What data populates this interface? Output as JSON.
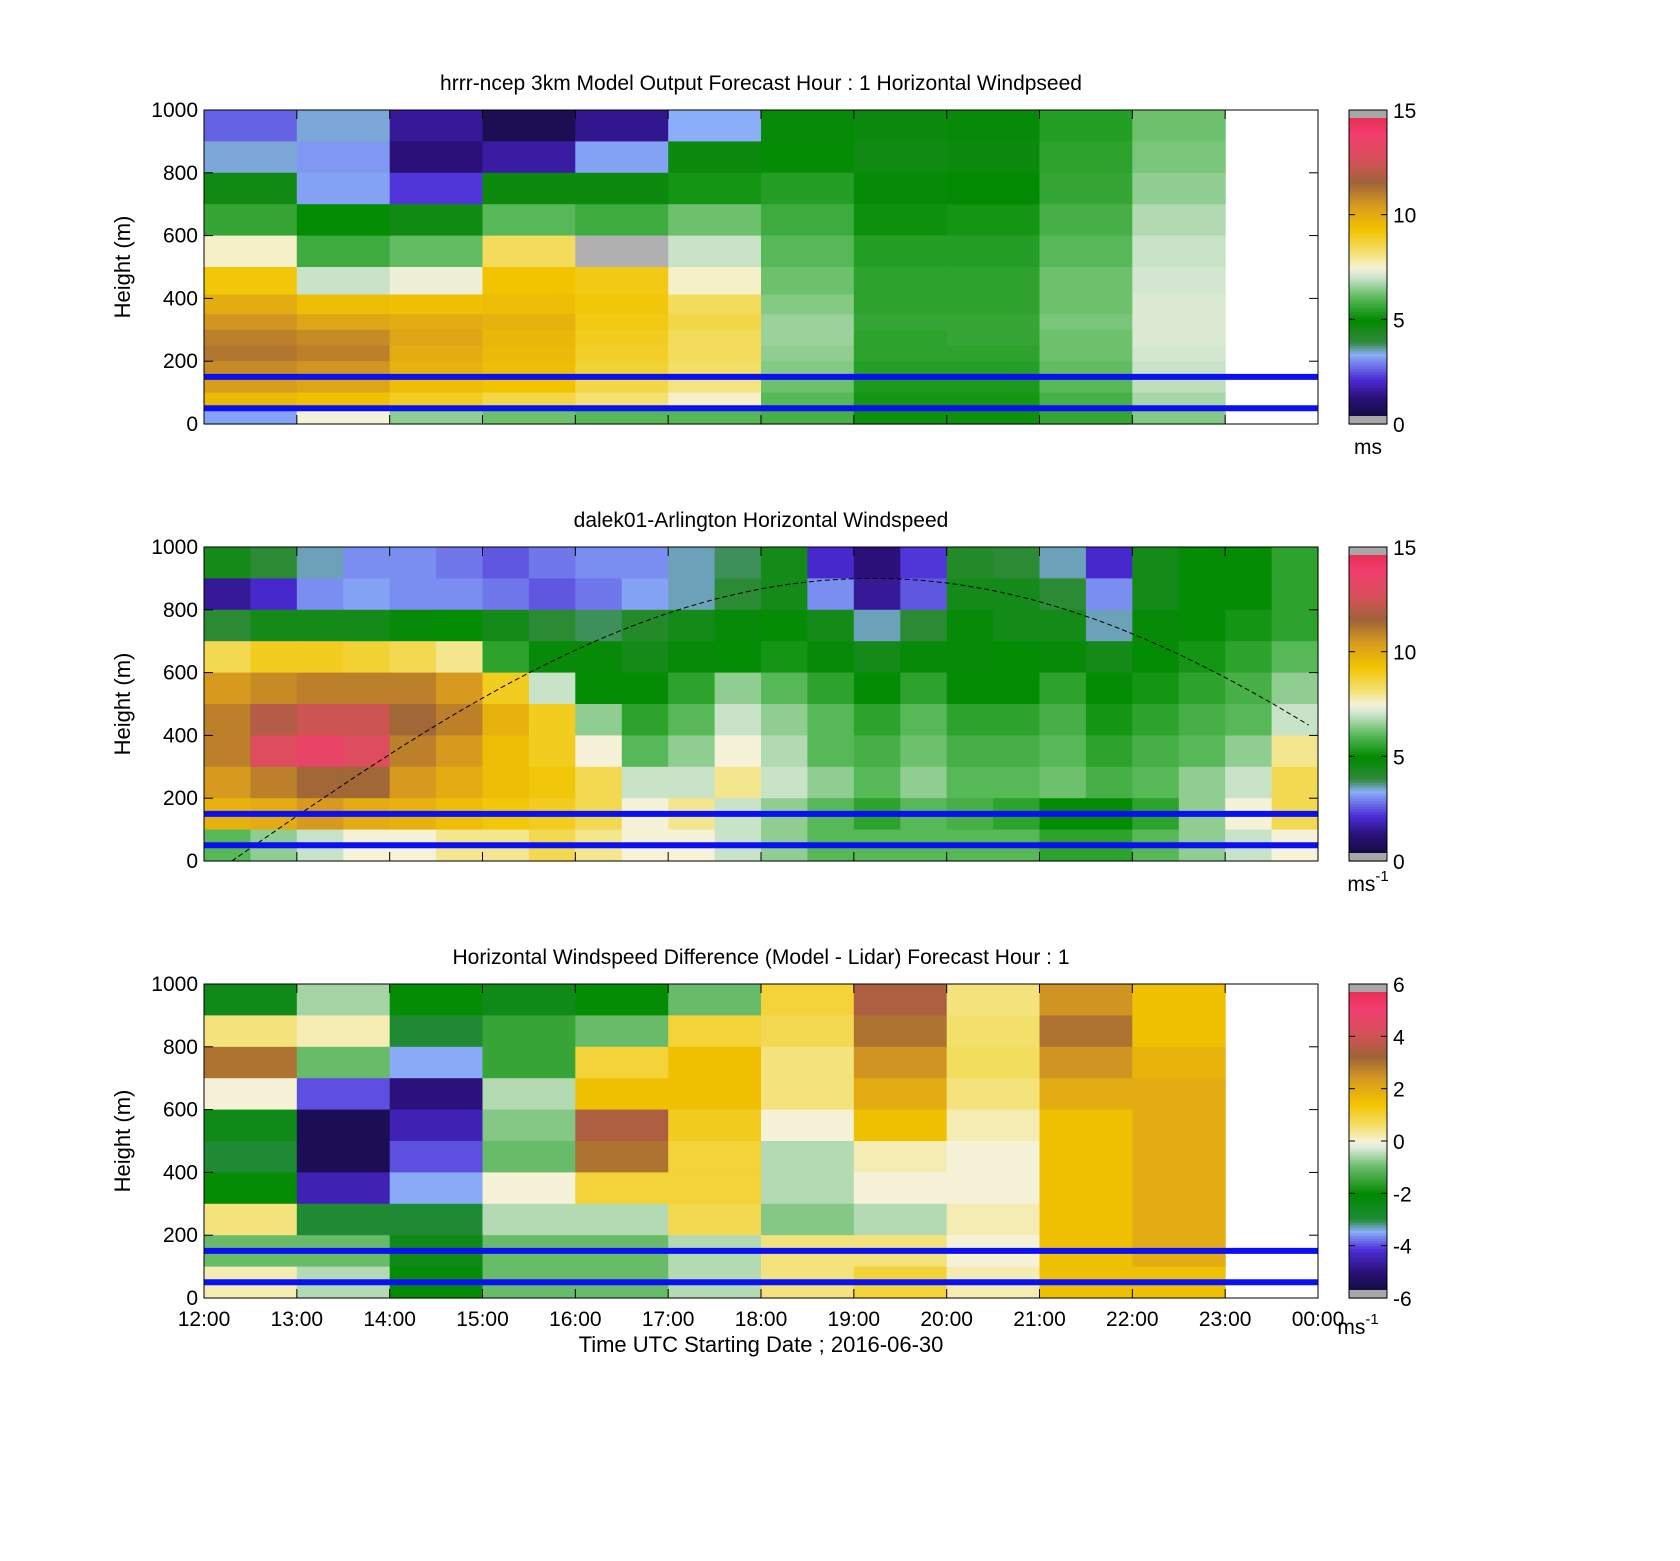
{
  "figure": {
    "xlabel": "Time UTC  Starting Date ; 2016-06-30",
    "x_ticks": [
      "12:00",
      "13:00",
      "14:00",
      "15:00",
      "16:00",
      "17:00",
      "18:00",
      "19:00",
      "20:00",
      "21:00",
      "22:00",
      "23:00",
      "00:00"
    ]
  },
  "chart_data": [
    {
      "type": "heatmap",
      "title": "hrrr-ncep 3km Model Output   Forecast Hour : 1 Horizontal Windpseed",
      "ylabel": "Height (m)",
      "xlabel": "",
      "ylim": [
        0,
        1000
      ],
      "y_ticks": [
        "0",
        "200",
        "400",
        "600",
        "800",
        "1000"
      ],
      "colorbar": {
        "range": [
          0,
          15
        ],
        "ticks": [
          "0",
          "5",
          "10",
          "15"
        ],
        "units": "ms",
        "units_sup": "",
        "palette": "speed"
      },
      "reference_lines_m": [
        50,
        150
      ],
      "x_hours": [
        12,
        13,
        14,
        15,
        16,
        17,
        18,
        19,
        20,
        21,
        22
      ],
      "y_levels_m": [
        950,
        850,
        750,
        650,
        550,
        450,
        375,
        325,
        275,
        225,
        175,
        125,
        75,
        25
      ],
      "values": [
        [
          2.6,
          3.4,
          1.5,
          0.6,
          1.4,
          3.3,
          4.8,
          4.7,
          4.8,
          5.4,
          6.2
        ],
        [
          3.4,
          3.1,
          1.2,
          1.6,
          3.2,
          4.7,
          5.0,
          4.6,
          4.7,
          5.5,
          6.3
        ],
        [
          4.6,
          3.2,
          2.2,
          4.7,
          4.7,
          5.2,
          5.4,
          4.8,
          4.9,
          5.6,
          6.5
        ],
        [
          5.6,
          5.0,
          4.6,
          6.0,
          5.7,
          6.2,
          5.7,
          5.1,
          5.2,
          5.8,
          6.8
        ],
        [
          7.6,
          5.7,
          6.1,
          8.4,
          0.0,
          7.0,
          6.0,
          5.4,
          5.4,
          6.0,
          7.0
        ],
        [
          9.2,
          7.0,
          7.4,
          9.3,
          9.1,
          7.6,
          6.2,
          5.5,
          5.5,
          6.2,
          7.1
        ],
        [
          10.0,
          9.5,
          9.4,
          9.5,
          9.2,
          8.4,
          6.4,
          5.5,
          5.5,
          6.2,
          7.2
        ],
        [
          10.6,
          10.2,
          10.0,
          9.8,
          9.1,
          8.6,
          6.6,
          5.6,
          5.6,
          6.3,
          7.2
        ],
        [
          11.0,
          10.8,
          10.2,
          9.7,
          9.0,
          8.4,
          6.6,
          5.5,
          5.6,
          6.2,
          7.2
        ],
        [
          11.2,
          11.0,
          10.0,
          9.6,
          8.9,
          8.4,
          6.5,
          5.5,
          5.5,
          6.2,
          7.1
        ],
        [
          10.8,
          10.6,
          9.8,
          9.5,
          8.8,
          8.3,
          6.4,
          5.4,
          5.4,
          6.1,
          7.0
        ],
        [
          10.4,
          10.2,
          9.5,
          9.3,
          8.6,
          8.1,
          6.2,
          5.3,
          5.3,
          6.0,
          6.9
        ],
        [
          9.6,
          9.4,
          9.0,
          8.6,
          8.2,
          7.6,
          6.0,
          5.2,
          5.2,
          5.8,
          6.7
        ],
        [
          3.2,
          7.5,
          6.5,
          6.2,
          6.0,
          6.0,
          5.8,
          5.1,
          5.1,
          5.6,
          6.4
        ]
      ]
    },
    {
      "type": "heatmap",
      "title": "dalek01-Arlington  Horizontal Windspeed",
      "ylabel": "Height (m)",
      "xlabel": "",
      "ylim": [
        0,
        1000
      ],
      "y_ticks": [
        "0",
        "200",
        "400",
        "600",
        "800",
        "1000"
      ],
      "colorbar": {
        "range": [
          0,
          15
        ],
        "ticks": [
          "0",
          "5",
          "10",
          "15"
        ],
        "units": "ms",
        "units_sup": "-1",
        "palette": "speed"
      },
      "reference_lines_m": [
        50,
        150
      ],
      "x_hours": [
        12.0,
        12.5,
        13.0,
        13.5,
        14.0,
        14.5,
        15.0,
        15.5,
        16.0,
        16.5,
        17.0,
        17.5,
        18.0,
        18.5,
        19.0,
        19.5,
        20.0,
        20.5,
        21.0,
        21.5,
        22.0,
        22.5,
        23.0,
        23.5
      ],
      "y_levels_m": [
        950,
        850,
        750,
        650,
        550,
        450,
        350,
        250,
        150,
        50
      ],
      "values": [
        [
          4.5,
          4.0,
          3.5,
          3.0,
          3.0,
          2.8,
          2.5,
          2.8,
          3.0,
          3.0,
          3.5,
          3.8,
          4.5,
          2.0,
          1.2,
          2.2,
          4.2,
          4.0,
          3.5,
          2.0,
          4.5,
          5.0,
          5.0,
          5.5
        ],
        [
          1.5,
          2.0,
          3.0,
          3.2,
          3.0,
          3.0,
          2.8,
          2.5,
          2.8,
          3.2,
          3.5,
          4.0,
          4.5,
          3.0,
          1.5,
          2.5,
          4.5,
          4.5,
          4.0,
          3.0,
          4.5,
          5.0,
          5.0,
          5.5
        ],
        [
          4.0,
          4.5,
          4.5,
          4.5,
          4.8,
          5.0,
          4.5,
          4.0,
          3.8,
          4.2,
          4.5,
          4.8,
          5.0,
          4.5,
          3.5,
          4.0,
          4.8,
          4.5,
          4.5,
          3.5,
          4.8,
          5.0,
          5.2,
          5.5
        ],
        [
          8.5,
          9.0,
          9.0,
          8.8,
          8.5,
          8.0,
          5.5,
          4.8,
          4.8,
          4.5,
          4.8,
          5.0,
          5.2,
          4.8,
          4.5,
          4.8,
          4.8,
          5.0,
          4.8,
          4.5,
          5.0,
          5.2,
          5.5,
          6.0
        ],
        [
          10.5,
          10.8,
          11.0,
          11.0,
          11.0,
          10.5,
          9.0,
          7.0,
          5.0,
          5.0,
          5.5,
          6.5,
          6.0,
          5.5,
          5.0,
          5.5,
          5.0,
          5.0,
          5.5,
          5.0,
          5.2,
          5.5,
          5.8,
          6.5
        ],
        [
          11.0,
          12.0,
          12.5,
          12.5,
          11.5,
          11.0,
          9.8,
          9.0,
          6.5,
          5.5,
          6.0,
          7.0,
          6.5,
          6.0,
          5.5,
          6.0,
          5.5,
          5.5,
          5.8,
          5.2,
          5.5,
          5.8,
          6.0,
          7.0
        ],
        [
          11.0,
          13.0,
          13.5,
          13.0,
          11.0,
          10.5,
          9.5,
          9.0,
          7.5,
          6.0,
          6.5,
          7.5,
          6.8,
          6.0,
          5.8,
          6.2,
          5.8,
          5.8,
          6.0,
          5.5,
          5.8,
          6.0,
          6.5,
          8.0
        ],
        [
          10.5,
          11.0,
          11.5,
          11.5,
          10.5,
          10.0,
          9.5,
          9.2,
          8.5,
          7.0,
          7.0,
          8.0,
          7.0,
          6.5,
          6.0,
          6.5,
          6.0,
          6.0,
          6.2,
          5.8,
          6.0,
          6.5,
          7.0,
          8.5
        ],
        [
          9.8,
          10.0,
          10.5,
          10.0,
          9.8,
          9.5,
          9.2,
          9.0,
          8.5,
          7.5,
          8.0,
          7.0,
          6.5,
          6.0,
          5.5,
          6.0,
          5.8,
          5.5,
          5.0,
          5.0,
          5.5,
          6.5,
          7.5,
          8.5
        ],
        [
          6.0,
          6.5,
          7.0,
          7.5,
          7.5,
          8.0,
          8.0,
          8.5,
          8.0,
          7.5,
          7.5,
          7.0,
          6.5,
          6.0,
          6.0,
          6.0,
          6.0,
          6.0,
          5.5,
          5.5,
          6.0,
          6.5,
          7.0,
          7.5
        ]
      ]
    },
    {
      "type": "heatmap",
      "title": "Horizontal Windspeed Difference (Model - Lidar) Forecast Hour : 1",
      "ylabel": "Height (m)",
      "xlabel": "Time UTC  Starting Date ; 2016-06-30",
      "ylim": [
        0,
        1000
      ],
      "y_ticks": [
        "0",
        "200",
        "400",
        "600",
        "800",
        "1000"
      ],
      "colorbar": {
        "range": [
          -6,
          6
        ],
        "ticks": [
          "-6",
          "-4",
          "-2",
          "0",
          "2",
          "4",
          "6"
        ],
        "units": "ms",
        "units_sup": "-1",
        "palette": "diff"
      },
      "reference_lines_m": [
        50,
        150
      ],
      "x_hours": [
        12,
        13,
        14,
        15,
        16,
        17,
        18,
        19,
        20,
        21,
        22
      ],
      "y_levels_m": [
        950,
        850,
        750,
        650,
        550,
        450,
        350,
        250,
        150,
        50
      ],
      "values": [
        [
          -2.5,
          -0.6,
          -2.0,
          -2.5,
          -2.0,
          -1.0,
          1.0,
          3.5,
          0.5,
          2.5,
          1.5
        ],
        [
          0.5,
          0.2,
          -3.0,
          -1.5,
          -1.0,
          1.0,
          0.8,
          3.0,
          0.6,
          3.0,
          1.5
        ],
        [
          3.0,
          -1.0,
          -3.5,
          -1.5,
          1.0,
          1.5,
          0.5,
          2.5,
          0.7,
          2.5,
          1.8
        ],
        [
          0.0,
          -4.0,
          -5.0,
          -0.5,
          1.5,
          1.5,
          0.5,
          2.0,
          0.5,
          2.0,
          2.0
        ],
        [
          -2.5,
          -5.5,
          -4.5,
          -0.8,
          3.5,
          1.2,
          0.0,
          1.5,
          0.2,
          1.5,
          2.0
        ],
        [
          -3.0,
          -5.5,
          -4.0,
          -1.0,
          3.0,
          1.0,
          -0.5,
          0.2,
          0.0,
          1.5,
          2.0
        ],
        [
          -2.0,
          -4.5,
          -3.5,
          0.0,
          1.0,
          1.0,
          -0.5,
          0.0,
          0.0,
          1.5,
          2.0
        ],
        [
          0.5,
          -3.0,
          -3.0,
          -0.5,
          -0.5,
          0.8,
          -0.8,
          -0.5,
          0.2,
          1.5,
          2.0
        ],
        [
          -1.0,
          -1.0,
          -2.5,
          -1.0,
          -1.0,
          -0.5,
          0.5,
          0.5,
          0.0,
          1.5,
          2.0
        ],
        [
          0.2,
          -0.5,
          -2.0,
          -1.0,
          -1.0,
          -0.5,
          0.5,
          1.0,
          0.2,
          1.5,
          1.5
        ]
      ]
    }
  ]
}
